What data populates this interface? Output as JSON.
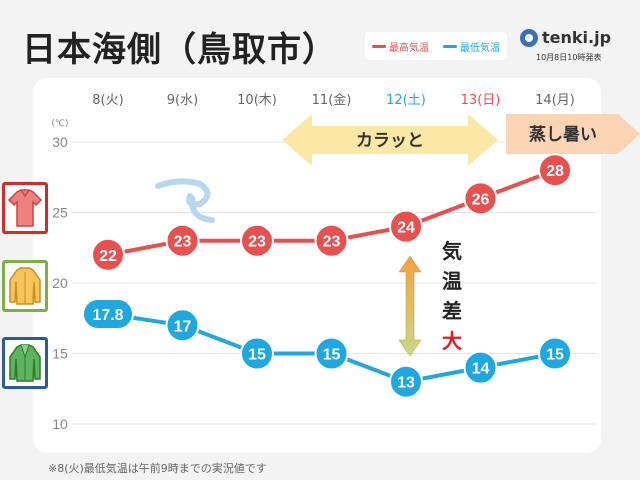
{
  "title": "日本海側（鳥取市）",
  "legend": {
    "high": "最高気温",
    "low": "最低気温"
  },
  "brand": {
    "name": "tenki.jp",
    "published": "10月8日10時発表"
  },
  "note": "※8(火)最低気温は午前9時までの実況値です",
  "colors": {
    "high": "#e85050",
    "low": "#1ea7e1",
    "saturday": "#1ea7e1",
    "sunday": "#e85050",
    "weekday": "#666666",
    "arrow_dry": "#fbe7a6",
    "arrow_humid": "#fbd3b5"
  },
  "chart_data": {
    "type": "line",
    "categories": [
      "8(火)",
      "9(水)",
      "10(木)",
      "11(金)",
      "12(土)",
      "13(日)",
      "14(月)"
    ],
    "series": [
      {
        "name": "最高気温",
        "values": [
          22,
          23,
          23,
          23,
          24,
          26,
          28
        ],
        "labels": [
          "22",
          "23",
          "23",
          "23",
          "24",
          "26",
          "28"
        ]
      },
      {
        "name": "最低気温",
        "values": [
          17.8,
          17,
          15,
          15,
          13,
          14,
          15
        ],
        "labels": [
          "17.8",
          "17",
          "15",
          "15",
          "13",
          "14",
          "15"
        ]
      }
    ],
    "yunit": "(℃)",
    "yticks": [
      30,
      25,
      20,
      15,
      10
    ],
    "ylim": [
      10,
      30
    ],
    "grid": true
  },
  "annotations": {
    "dry": "カラッと",
    "humid": "蒸し暑い",
    "diff": [
      "気",
      "温",
      "差",
      "大"
    ]
  },
  "clothing_icons": [
    "short-sleeve-shirt-icon",
    "long-sleeve-shirt-icon",
    "cardigan-icon"
  ]
}
